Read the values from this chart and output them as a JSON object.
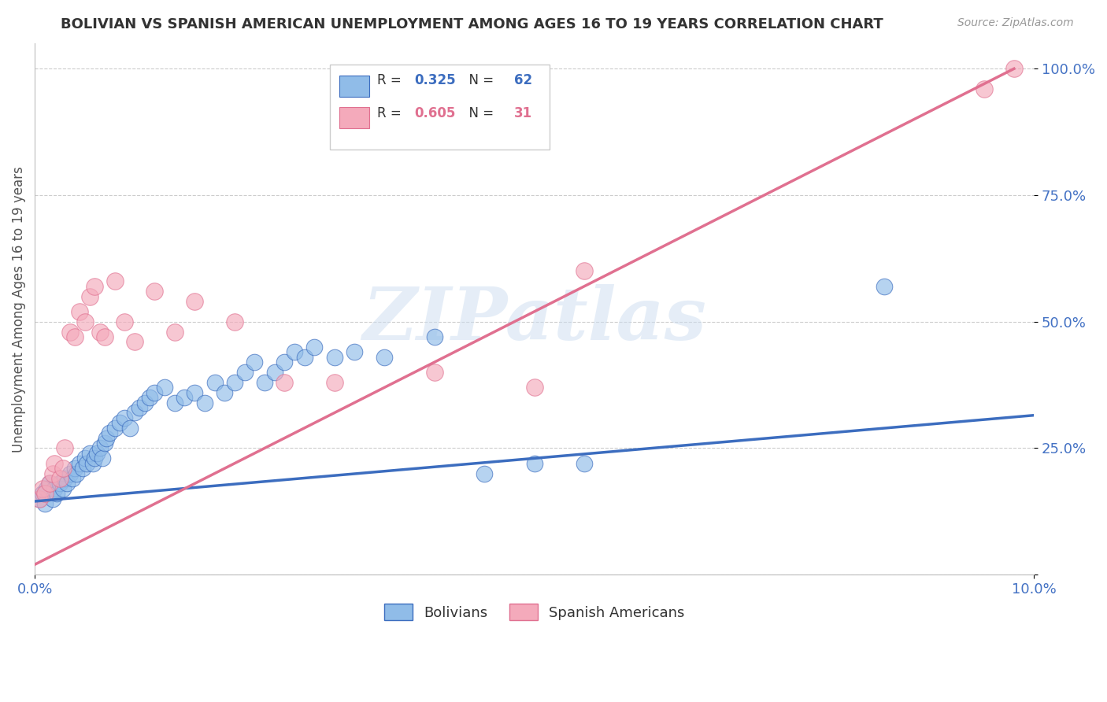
{
  "title": "BOLIVIAN VS SPANISH AMERICAN UNEMPLOYMENT AMONG AGES 16 TO 19 YEARS CORRELATION CHART",
  "source": "Source: ZipAtlas.com",
  "ylabel": "Unemployment Among Ages 16 to 19 years",
  "x_min": 0.0,
  "x_max": 10.0,
  "y_min": 0.0,
  "y_max": 1.05,
  "x_tick_labels": [
    "0.0%",
    "10.0%"
  ],
  "y_ticks": [
    0.0,
    0.25,
    0.5,
    0.75,
    1.0
  ],
  "y_tick_labels": [
    "",
    "25.0%",
    "50.0%",
    "75.0%",
    "100.0%"
  ],
  "bolivians_x": [
    0.05,
    0.08,
    0.1,
    0.12,
    0.15,
    0.18,
    0.2,
    0.22,
    0.25,
    0.28,
    0.3,
    0.32,
    0.35,
    0.38,
    0.4,
    0.42,
    0.45,
    0.48,
    0.5,
    0.52,
    0.55,
    0.58,
    0.6,
    0.62,
    0.65,
    0.68,
    0.7,
    0.72,
    0.75,
    0.8,
    0.85,
    0.9,
    0.95,
    1.0,
    1.05,
    1.1,
    1.15,
    1.2,
    1.3,
    1.4,
    1.5,
    1.6,
    1.7,
    1.8,
    1.9,
    2.0,
    2.1,
    2.2,
    2.3,
    2.4,
    2.5,
    2.6,
    2.7,
    2.8,
    3.0,
    3.2,
    3.5,
    4.0,
    4.5,
    5.0,
    5.5,
    8.5
  ],
  "bolivians_y": [
    0.15,
    0.16,
    0.14,
    0.17,
    0.18,
    0.15,
    0.17,
    0.16,
    0.18,
    0.17,
    0.19,
    0.18,
    0.2,
    0.19,
    0.21,
    0.2,
    0.22,
    0.21,
    0.23,
    0.22,
    0.24,
    0.22,
    0.23,
    0.24,
    0.25,
    0.23,
    0.26,
    0.27,
    0.28,
    0.29,
    0.3,
    0.31,
    0.29,
    0.32,
    0.33,
    0.34,
    0.35,
    0.36,
    0.37,
    0.34,
    0.35,
    0.36,
    0.34,
    0.38,
    0.36,
    0.38,
    0.4,
    0.42,
    0.38,
    0.4,
    0.42,
    0.44,
    0.43,
    0.45,
    0.43,
    0.44,
    0.43,
    0.47,
    0.2,
    0.22,
    0.22,
    0.57
  ],
  "spanish_x": [
    0.05,
    0.08,
    0.1,
    0.15,
    0.18,
    0.2,
    0.25,
    0.28,
    0.3,
    0.35,
    0.4,
    0.45,
    0.5,
    0.55,
    0.6,
    0.65,
    0.7,
    0.8,
    0.9,
    1.0,
    1.2,
    1.4,
    1.6,
    2.0,
    2.5,
    3.0,
    4.0,
    5.0,
    5.5,
    9.5,
    9.8
  ],
  "spanish_y": [
    0.15,
    0.17,
    0.16,
    0.18,
    0.2,
    0.22,
    0.19,
    0.21,
    0.25,
    0.48,
    0.47,
    0.52,
    0.5,
    0.55,
    0.57,
    0.48,
    0.47,
    0.58,
    0.5,
    0.46,
    0.56,
    0.48,
    0.54,
    0.5,
    0.38,
    0.38,
    0.4,
    0.37,
    0.6,
    0.96,
    1.0
  ],
  "blue_line_x": [
    0.0,
    10.0
  ],
  "blue_line_y": [
    0.145,
    0.315
  ],
  "pink_line_x": [
    0.0,
    9.8
  ],
  "pink_line_y": [
    0.02,
    1.0
  ],
  "blue_color": "#3c6dbf",
  "pink_color": "#e07090",
  "scatter_blue": "#90bce8",
  "scatter_pink": "#f4aabb",
  "watermark_text": "ZIPatlas",
  "background_color": "#ffffff",
  "grid_color": "#cccccc",
  "title_color": "#333333",
  "tick_color": "#4472c4",
  "legend_R_blue": "0.325",
  "legend_N_blue": "62",
  "legend_R_pink": "0.605",
  "legend_N_pink": "31"
}
